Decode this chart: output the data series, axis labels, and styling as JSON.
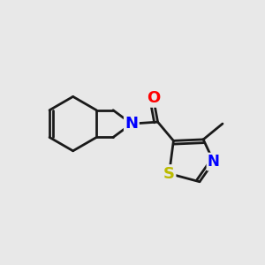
{
  "background_color": "#e8e8e8",
  "bond_color": "#1a1a1a",
  "bond_width": 2.0,
  "N_color": "#0000ff",
  "O_color": "#ff0000",
  "S_color": "#bbbb00",
  "font_size_N": 13,
  "font_size_O": 13,
  "font_size_S": 13,
  "font_size_N_thz": 12,
  "fig_width": 3.0,
  "fig_height": 3.0,
  "dpi": 100,
  "xlim": [
    0,
    3.0
  ],
  "ylim": [
    0,
    3.0
  ]
}
